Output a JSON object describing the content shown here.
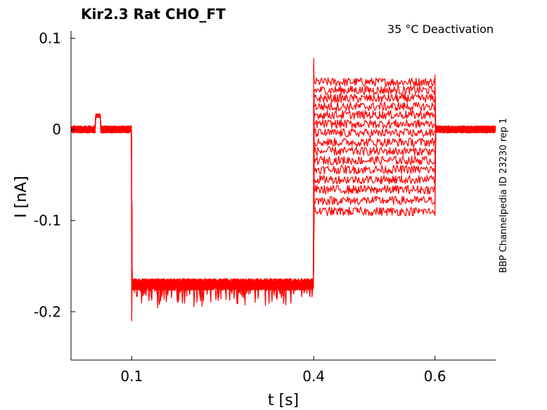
{
  "chart_data": {
    "type": "line",
    "title": "Kir2.3  Rat  CHO_FT",
    "annotation": "35 °C  Deactivation",
    "side_label": "BBP Channelpedia ID 23230 rep 1",
    "xlabel": "t [s]",
    "ylabel": "I [nA]",
    "xlim": [
      0.0,
      0.7
    ],
    "ylim": [
      -0.253,
      0.108
    ],
    "x_ticks": [
      0.1,
      0.4,
      0.6
    ],
    "x_tick_labels": [
      "0.1",
      "0.4",
      "0.6"
    ],
    "y_ticks": [
      0.1,
      0,
      -0.1,
      -0.2
    ],
    "y_tick_labels": [
      "0.1",
      "0",
      "-0.1",
      "-0.2"
    ],
    "grid": false,
    "line_color": "#ff0000",
    "protocol": {
      "baseline_end": 0.1,
      "prepulse_end": 0.4,
      "test_end": 0.6,
      "baseline_level": 0.0,
      "prepulse_level": -0.17,
      "test_levels": [
        0.052,
        0.043,
        0.034,
        0.025,
        0.016,
        0.006,
        -0.004,
        -0.014,
        -0.024,
        -0.034,
        -0.044,
        -0.055,
        -0.066,
        -0.078,
        -0.09
      ],
      "noise_amplitude": 0.004,
      "artifact_bump": {
        "t_start": 0.04,
        "t_end": 0.048,
        "value": 0.015
      },
      "onset_spike": {
        "t": 0.1,
        "value": -0.21
      },
      "test_onset_spike": {
        "t": 0.4,
        "value": 0.078
      },
      "test_offset_spike": {
        "t": 0.6,
        "value": 0.06
      }
    }
  }
}
